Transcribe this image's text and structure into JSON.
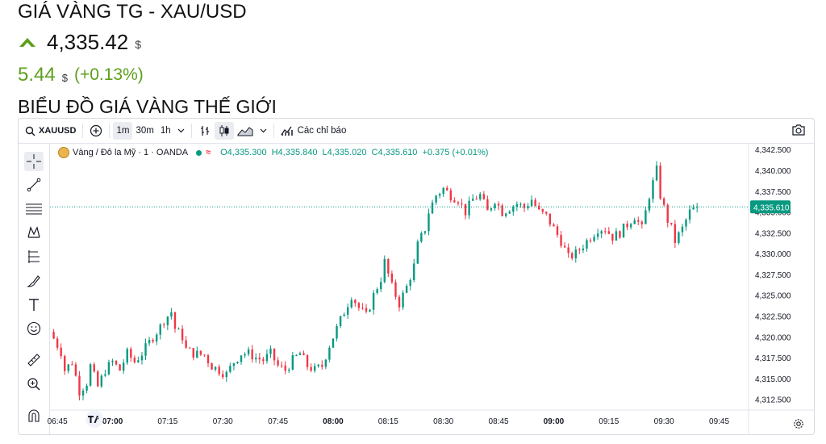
{
  "header": {
    "title": "GIÁ VÀNG TG - XAU/USD",
    "price": "4,335.42",
    "price_unit": "$",
    "change_value": "5.44",
    "change_unit": "$",
    "change_percent": "(+0.13%)",
    "section_title": "BIỂU ĐỒ GIÁ VÀNG THẾ GIỚI"
  },
  "toolbar": {
    "symbol": "XAUUSD",
    "intervals": [
      "1m",
      "30m",
      "1h"
    ],
    "active_interval": "1m",
    "indicators_label": "Các chỉ báo"
  },
  "sidebar": {
    "tools": [
      "crosshair-icon",
      "trend-line-icon",
      "fib-lines-icon",
      "pattern-icon",
      "projection-icon",
      "brush-icon",
      "text-icon",
      "emoji-icon",
      "ruler-icon",
      "zoom-in-icon",
      "magnet-icon"
    ]
  },
  "legend": {
    "symbol_name": "Vàng / Đô la Mỹ · 1 · OANDA",
    "open": "O4,335.300",
    "high": "H4,335.840",
    "low": "L4,335.020",
    "close": "C4,335.610",
    "change": "+0.375 (+0.01%)"
  },
  "colors": {
    "up": "#089981",
    "down": "#f23645",
    "price_label_bg": "#089981",
    "accent_green": "#5d9f1c"
  },
  "chart_data": {
    "type": "candlestick",
    "current_price": 4335.61,
    "current_price_label": "4,335.610",
    "ylim": [
      4311.2,
      4343.2
    ],
    "y_ticks": [
      4342.5,
      4340,
      4337.5,
      4335,
      4332.5,
      4330,
      4327.5,
      4325,
      4322.5,
      4320,
      4317.5,
      4315,
      4312.5
    ],
    "y_tick_labels": [
      "4,342.500",
      "4,340.000",
      "4,337.500",
      "4,335.000",
      "4,332.500",
      "4,330.000",
      "4,327.500",
      "4,325.000",
      "4,322.500",
      "4,320.000",
      "4,317.500",
      "4,315.000",
      "4,312.500"
    ],
    "x_range_minutes": [
      403,
      593
    ],
    "x_ticks": [
      405,
      420,
      435,
      450,
      465,
      480,
      495,
      510,
      525,
      540,
      555,
      570,
      585
    ],
    "x_tick_labels": [
      "06:45",
      "07:00",
      "07:15",
      "07:30",
      "07:45",
      "08:00",
      "08:15",
      "08:30",
      "08:45",
      "09:00",
      "09:15",
      "09:30",
      "09:45"
    ],
    "x_tick_bold": [
      false,
      true,
      false,
      false,
      false,
      true,
      false,
      false,
      false,
      true,
      false,
      false,
      false
    ],
    "close_path": [
      [
        403,
        4320.6
      ],
      [
        406,
        4318.2
      ],
      [
        407,
        4316.0
      ],
      [
        409,
        4317.0
      ],
      [
        411,
        4313.5
      ],
      [
        413,
        4314.5
      ],
      [
        414,
        4316.5
      ],
      [
        416,
        4314.0
      ],
      [
        418,
        4316.0
      ],
      [
        420,
        4317.0
      ],
      [
        422,
        4316.0
      ],
      [
        424,
        4318.0
      ],
      [
        426,
        4317.0
      ],
      [
        428,
        4318.0
      ],
      [
        431,
        4320.0
      ],
      [
        433,
        4321.2
      ],
      [
        434,
        4322.0
      ],
      [
        436,
        4323.0
      ],
      [
        437,
        4321.0
      ],
      [
        439,
        4320.0
      ],
      [
        440,
        4318.5
      ],
      [
        442,
        4318.0
      ],
      [
        445,
        4317.8
      ],
      [
        447,
        4316.5
      ],
      [
        449,
        4316.0
      ],
      [
        451,
        4315.5
      ],
      [
        453,
        4317.0
      ],
      [
        455,
        4318.0
      ],
      [
        457,
        4318.0
      ],
      [
        459,
        4317.5
      ],
      [
        461,
        4317.2
      ],
      [
        463,
        4318.0
      ],
      [
        465,
        4316.5
      ],
      [
        467,
        4316.0
      ],
      [
        469,
        4317.2
      ],
      [
        471,
        4318.0
      ],
      [
        473,
        4316.5
      ],
      [
        475,
        4316.0
      ],
      [
        477,
        4316.5
      ],
      [
        479,
        4319.0
      ],
      [
        481,
        4321.0
      ],
      [
        483,
        4323.0
      ],
      [
        485,
        4325.0
      ],
      [
        487,
        4323.5
      ],
      [
        489,
        4322.5
      ],
      [
        491,
        4325.0
      ],
      [
        493,
        4327.0
      ],
      [
        494,
        4329.0
      ],
      [
        496,
        4326.0
      ],
      [
        498,
        4324.0
      ],
      [
        500,
        4326.0
      ],
      [
        502,
        4328.5
      ],
      [
        503,
        4331.0
      ],
      [
        505,
        4333.0
      ],
      [
        506,
        4335.0
      ],
      [
        508,
        4337.0
      ],
      [
        510,
        4337.8
      ],
      [
        512,
        4337.0
      ],
      [
        514,
        4336.5
      ],
      [
        516,
        4335.0
      ],
      [
        518,
        4336.5
      ],
      [
        520,
        4337.0
      ],
      [
        522,
        4335.0
      ],
      [
        524,
        4336.5
      ],
      [
        526,
        4335.0
      ],
      [
        528,
        4335.5
      ],
      [
        530,
        4336.0
      ],
      [
        532,
        4335.5
      ],
      [
        534,
        4336.5
      ],
      [
        536,
        4335.0
      ],
      [
        538,
        4334.5
      ],
      [
        540,
        4333.0
      ],
      [
        542,
        4331.5
      ],
      [
        544,
        4329.5
      ],
      [
        546,
        4330.0
      ],
      [
        548,
        4331.0
      ],
      [
        550,
        4332.0
      ],
      [
        552,
        4333.0
      ],
      [
        554,
        4333.0
      ],
      [
        556,
        4332.0
      ],
      [
        558,
        4332.5
      ],
      [
        560,
        4333.5
      ],
      [
        562,
        4334.5
      ],
      [
        564,
        4333.0
      ],
      [
        566,
        4337.0
      ],
      [
        568,
        4340.0
      ],
      [
        569,
        4337.0
      ],
      [
        571,
        4334.0
      ],
      [
        572,
        4333.0
      ],
      [
        573,
        4331.5
      ],
      [
        575,
        4333.0
      ],
      [
        577,
        4335.0
      ],
      [
        579,
        4335.61
      ]
    ]
  }
}
